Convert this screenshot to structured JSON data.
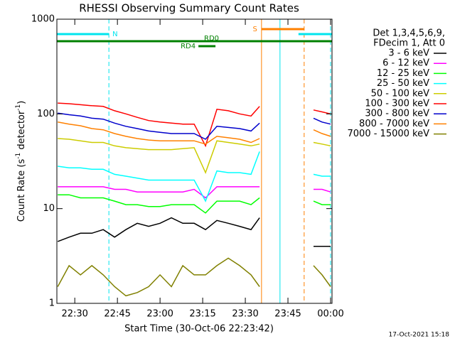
{
  "chart_data": {
    "type": "line",
    "title": "RHESSI Observing Summary Count Rates",
    "x_label": "Start Time (30-Oct-06 22:23:42)",
    "y_label": [
      "Count Rate (s",
      "-1",
      " detector",
      "-1",
      ")"
    ],
    "footer": "17-Oct-2021 15:18",
    "legend_header": [
      "Det 1,3,4,5,6,9,",
      "FDecim 1, Att 0"
    ],
    "log_y": true,
    "xlim": [
      23.7,
      120.5
    ],
    "xticks": [
      {
        "value": 30,
        "label": "22:30"
      },
      {
        "value": 45,
        "label": "22:45"
      },
      {
        "value": 60,
        "label": "23:00"
      },
      {
        "value": 75,
        "label": "23:15"
      },
      {
        "value": 90,
        "label": "23:30"
      },
      {
        "value": 105,
        "label": "23:45"
      },
      {
        "value": 120,
        "label": "00:00"
      }
    ],
    "ylim": [
      1,
      1000
    ],
    "yticks": [
      1,
      10,
      100,
      1000
    ],
    "x": [
      24,
      28,
      32,
      36,
      40,
      44,
      48,
      52,
      56,
      60,
      64,
      68,
      72,
      76,
      80,
      84,
      88,
      92,
      95,
      106,
      114,
      117,
      120
    ],
    "series": [
      {
        "name": "3 - 6 keV",
        "color": "#000000",
        "values": [
          4.5,
          5,
          5.5,
          5.5,
          6,
          5,
          6,
          7,
          6.5,
          7,
          8,
          7,
          7,
          6,
          7.5,
          7,
          6.5,
          6,
          8,
          null,
          4,
          4,
          4
        ]
      },
      {
        "name": "6 - 12 keV",
        "color": "#ff00ff",
        "values": [
          17,
          17,
          17,
          17,
          17,
          16,
          16,
          15,
          15,
          15,
          15,
          15,
          16,
          13,
          17,
          17,
          17,
          17,
          17,
          null,
          16,
          16,
          15
        ]
      },
      {
        "name": "12 - 25 keV",
        "color": "#00ff00",
        "values": [
          14,
          14,
          13,
          13,
          13,
          12,
          11,
          11,
          10.5,
          10.5,
          11,
          11,
          11,
          9,
          12,
          12,
          12,
          11,
          13,
          null,
          12,
          11,
          11
        ]
      },
      {
        "name": "25 - 50 keV",
        "color": "#00ffff",
        "values": [
          28,
          27,
          27,
          26,
          26,
          23,
          22,
          21,
          20,
          20,
          20,
          20,
          20,
          12,
          25,
          24,
          24,
          23,
          40,
          null,
          23,
          22,
          22
        ]
      },
      {
        "name": "50 - 100 keV",
        "color": "#cccc00",
        "values": [
          55,
          54,
          52,
          50,
          50,
          46,
          44,
          43,
          42,
          42,
          42,
          43,
          44,
          24,
          52,
          50,
          48,
          46,
          48,
          null,
          50,
          48,
          46
        ]
      },
      {
        "name": "100 - 300 keV",
        "color": "#ff0000",
        "values": [
          130,
          128,
          125,
          122,
          120,
          108,
          100,
          92,
          85,
          82,
          80,
          78,
          78,
          46,
          112,
          108,
          100,
          95,
          120,
          null,
          110,
          105,
          100
        ]
      },
      {
        "name": "300 - 800 keV",
        "color": "#0000cc",
        "values": [
          102,
          98,
          95,
          90,
          88,
          80,
          74,
          70,
          66,
          64,
          62,
          62,
          62,
          54,
          74,
          72,
          70,
          66,
          80,
          null,
          90,
          82,
          78
        ]
      },
      {
        "name": "800 - 7000 keV",
        "color": "#ff8000",
        "values": [
          82,
          78,
          75,
          70,
          68,
          62,
          58,
          55,
          53,
          52,
          52,
          52,
          52,
          48,
          58,
          56,
          54,
          50,
          55,
          null,
          68,
          62,
          58
        ]
      },
      {
        "name": "7000 - 15000 keV",
        "color": "#808000",
        "values": [
          1.5,
          2.5,
          2,
          2.5,
          2,
          1.5,
          1.2,
          1.3,
          1.5,
          2,
          1.5,
          2.5,
          2,
          2,
          2.5,
          3,
          2.5,
          2,
          1.5,
          null,
          2.5,
          2,
          1.5
        ]
      }
    ],
    "markers": [
      {
        "x": 42,
        "color": "#00e5ee",
        "style": "dashed"
      },
      {
        "x": 95.7,
        "color": "#ff8000",
        "style": "solid"
      },
      {
        "x": 102.2,
        "color": "#00e5ee",
        "style": "solid"
      },
      {
        "x": 110.7,
        "color": "#ff8000",
        "style": "dashed"
      },
      {
        "x": 120,
        "color": "#00e5ee",
        "style": "dashed"
      }
    ],
    "bars": [
      {
        "label": "N",
        "color": "#00e5ee",
        "spans": [
          [
            23.7,
            42
          ],
          [
            108.7,
            120.5
          ]
        ]
      },
      {
        "label": "S",
        "color": "#ff8000",
        "spans": [
          [
            95.7,
            110.7
          ]
        ]
      },
      {
        "label": "RD0",
        "color": "#008000",
        "spans": [
          [
            23.7,
            120.5
          ]
        ]
      },
      {
        "label": "RD4",
        "color": "#008000",
        "spans": [
          [
            73.5,
            79.5
          ]
        ]
      }
    ]
  }
}
